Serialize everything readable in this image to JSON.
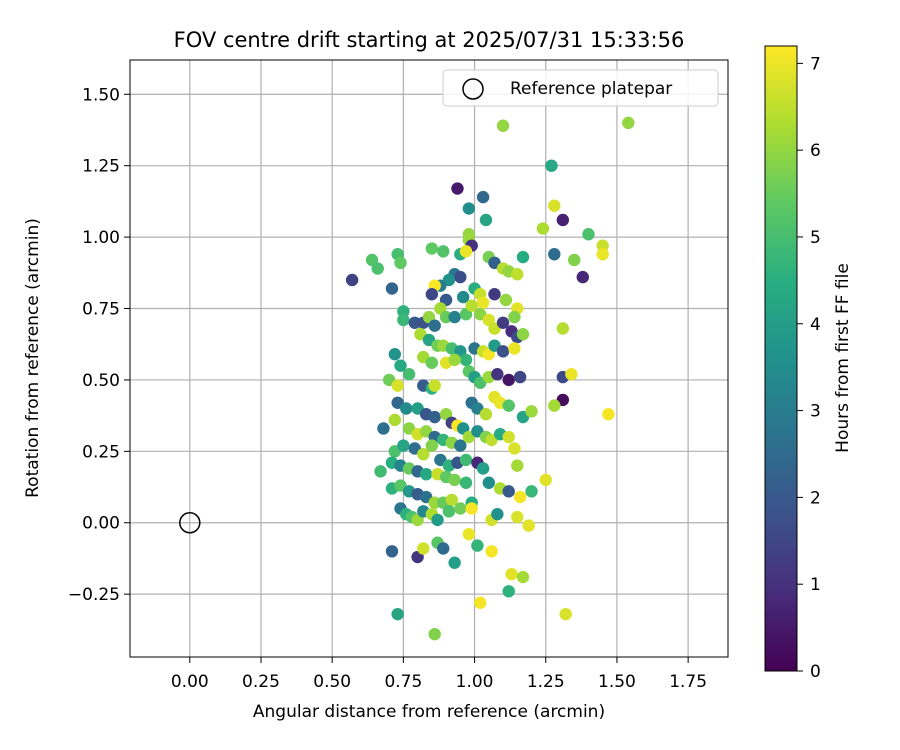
{
  "chart_data": {
    "type": "scatter",
    "title": "FOV centre drift starting at 2025/07/31 15:33:56",
    "xlabel": "Angular distance from reference (arcmin)",
    "ylabel": "Rotation from reference (arcmin)",
    "xlim": [
      -0.21,
      1.89
    ],
    "ylim": [
      -0.47,
      1.62
    ],
    "xticks": [
      "0.00",
      "0.25",
      "0.50",
      "0.75",
      "1.00",
      "1.25",
      "1.50",
      "1.75"
    ],
    "xtick_values": [
      0,
      0.25,
      0.5,
      0.75,
      1.0,
      1.25,
      1.5,
      1.75
    ],
    "yticks": [
      "−0.25",
      "0.00",
      "0.25",
      "0.50",
      "0.75",
      "1.00",
      "1.25",
      "1.50"
    ],
    "ytick_values": [
      -0.25,
      0,
      0.25,
      0.5,
      0.75,
      1.0,
      1.25,
      1.5
    ],
    "grid": true,
    "legend": {
      "location": "top-right",
      "entries": [
        "Reference platepar"
      ]
    },
    "reference_point": {
      "x": 0.0,
      "y": 0.0,
      "label": "Reference platepar"
    },
    "colorbar": {
      "label": "Hours from first FF file",
      "colormap": "viridis",
      "range": [
        0,
        7.2
      ],
      "ticks": [
        "0",
        "1",
        "2",
        "3",
        "4",
        "5",
        "6",
        "7"
      ],
      "tick_values": [
        0,
        1,
        2,
        3,
        4,
        5,
        6,
        7
      ]
    },
    "points": [
      [
        1.1,
        1.39,
        6.0
      ],
      [
        1.54,
        1.4,
        6.0
      ],
      [
        1.27,
        1.25,
        4.3
      ],
      [
        0.94,
        1.17,
        0.5
      ],
      [
        1.03,
        1.14,
        2.4
      ],
      [
        1.28,
        1.11,
        6.8
      ],
      [
        1.31,
        1.06,
        0.7
      ],
      [
        0.98,
        1.1,
        3.5
      ],
      [
        1.04,
        1.06,
        4.2
      ],
      [
        1.24,
        1.03,
        6.3
      ],
      [
        1.4,
        1.01,
        5.1
      ],
      [
        1.45,
        0.97,
        6.6
      ],
      [
        1.45,
        0.94,
        7.0
      ],
      [
        1.28,
        0.94,
        2.5
      ],
      [
        1.35,
        0.92,
        5.8
      ],
      [
        0.57,
        0.85,
        1.4
      ],
      [
        1.38,
        0.86,
        0.8
      ],
      [
        0.64,
        0.92,
        5.2
      ],
      [
        0.66,
        0.89,
        5.1
      ],
      [
        0.73,
        0.94,
        5.0
      ],
      [
        0.74,
        0.91,
        5.4
      ],
      [
        0.71,
        0.82,
        2.3
      ],
      [
        0.85,
        0.96,
        5.4
      ],
      [
        0.89,
        0.95,
        5.2
      ],
      [
        0.95,
        0.94,
        4.5
      ],
      [
        0.98,
        1.01,
        6.0
      ],
      [
        0.98,
        0.99,
        6.1
      ],
      [
        0.99,
        0.97,
        1.0
      ],
      [
        0.97,
        0.95,
        7.0
      ],
      [
        1.05,
        0.93,
        5.7
      ],
      [
        1.07,
        0.91,
        2.2
      ],
      [
        1.1,
        0.89,
        6.4
      ],
      [
        1.12,
        0.88,
        6.0
      ],
      [
        1.17,
        0.93,
        4.4
      ],
      [
        1.15,
        0.87,
        6.5
      ],
      [
        0.93,
        0.87,
        2.8
      ],
      [
        0.95,
        0.86,
        1.7
      ],
      [
        0.91,
        0.85,
        3.6
      ],
      [
        0.88,
        0.83,
        3.0
      ],
      [
        0.86,
        0.83,
        7.2
      ],
      [
        0.85,
        0.8,
        1.5
      ],
      [
        0.9,
        0.78,
        2.0
      ],
      [
        0.96,
        0.79,
        3.4
      ],
      [
        1.0,
        0.82,
        4.5
      ],
      [
        1.02,
        0.8,
        6.6
      ],
      [
        1.03,
        0.77,
        7.0
      ],
      [
        1.07,
        0.8,
        1.2
      ],
      [
        1.11,
        0.78,
        6.0
      ],
      [
        1.15,
        0.75,
        6.9
      ],
      [
        1.14,
        0.72,
        5.8
      ],
      [
        0.75,
        0.74,
        4.6
      ],
      [
        0.75,
        0.71,
        4.8
      ],
      [
        0.79,
        0.7,
        2.0
      ],
      [
        0.82,
        0.7,
        1.8
      ],
      [
        0.84,
        0.72,
        6.0
      ],
      [
        0.86,
        0.69,
        2.6
      ],
      [
        0.88,
        0.75,
        6.2
      ],
      [
        0.9,
        0.72,
        5.5
      ],
      [
        0.93,
        0.72,
        3.1
      ],
      [
        0.97,
        0.73,
        5.3
      ],
      [
        0.99,
        0.76,
        6.4
      ],
      [
        1.02,
        0.73,
        5.9
      ],
      [
        1.05,
        0.71,
        6.8
      ],
      [
        1.07,
        0.68,
        6.6
      ],
      [
        1.1,
        0.7,
        1.3
      ],
      [
        1.13,
        0.67,
        0.9
      ],
      [
        1.15,
        0.65,
        1.6
      ],
      [
        1.17,
        0.66,
        5.9
      ],
      [
        1.31,
        0.68,
        6.4
      ],
      [
        0.81,
        0.66,
        6.3
      ],
      [
        0.84,
        0.64,
        4.2
      ],
      [
        0.87,
        0.62,
        5.6
      ],
      [
        0.89,
        0.62,
        6.1
      ],
      [
        0.92,
        0.61,
        5.0
      ],
      [
        0.95,
        0.6,
        3.8
      ],
      [
        0.97,
        0.57,
        4.7
      ],
      [
        1.0,
        0.61,
        2.8
      ],
      [
        1.03,
        0.6,
        6.6
      ],
      [
        1.05,
        0.59,
        7.1
      ],
      [
        1.07,
        0.62,
        3.9
      ],
      [
        1.1,
        0.6,
        1.8
      ],
      [
        1.14,
        0.61,
        7.0
      ],
      [
        0.72,
        0.59,
        3.7
      ],
      [
        0.82,
        0.58,
        6.2
      ],
      [
        0.85,
        0.56,
        5.5
      ],
      [
        0.9,
        0.56,
        6.9
      ],
      [
        0.93,
        0.57,
        6.1
      ],
      [
        0.74,
        0.55,
        4.3
      ],
      [
        0.77,
        0.52,
        5.0
      ],
      [
        0.7,
        0.5,
        5.6
      ],
      [
        0.73,
        0.48,
        6.8
      ],
      [
        0.82,
        0.48,
        2.1
      ],
      [
        0.85,
        0.47,
        4.6
      ],
      [
        0.86,
        0.48,
        6.6
      ],
      [
        0.98,
        0.53,
        5.3
      ],
      [
        1.0,
        0.51,
        4.0
      ],
      [
        1.02,
        0.49,
        5.1
      ],
      [
        1.05,
        0.51,
        6.1
      ],
      [
        1.08,
        0.52,
        1.1
      ],
      [
        1.12,
        0.5,
        0.4
      ],
      [
        1.16,
        0.51,
        1.5
      ],
      [
        1.31,
        0.51,
        1.6
      ],
      [
        1.34,
        0.52,
        7.0
      ],
      [
        1.31,
        0.43,
        0.2
      ],
      [
        1.28,
        0.41,
        6.2
      ],
      [
        1.47,
        0.38,
        7.1
      ],
      [
        0.73,
        0.42,
        2.4
      ],
      [
        0.76,
        0.4,
        3.4
      ],
      [
        0.8,
        0.4,
        4.0
      ],
      [
        0.83,
        0.38,
        1.9
      ],
      [
        0.86,
        0.37,
        2.2
      ],
      [
        0.9,
        0.38,
        6.0
      ],
      [
        0.92,
        0.35,
        1.4
      ],
      [
        0.94,
        0.34,
        7.2
      ],
      [
        0.96,
        0.33,
        3.6
      ],
      [
        0.99,
        0.42,
        2.7
      ],
      [
        1.01,
        0.4,
        3.1
      ],
      [
        1.04,
        0.38,
        6.4
      ],
      [
        1.07,
        0.44,
        6.9
      ],
      [
        1.09,
        0.42,
        7.0
      ],
      [
        1.12,
        0.41,
        5.2
      ],
      [
        1.17,
        0.37,
        4.2
      ],
      [
        1.2,
        0.39,
        6.1
      ],
      [
        0.68,
        0.33,
        2.6
      ],
      [
        0.72,
        0.36,
        6.3
      ],
      [
        0.77,
        0.33,
        5.9
      ],
      [
        0.8,
        0.31,
        6.7
      ],
      [
        0.83,
        0.32,
        6.0
      ],
      [
        0.86,
        0.3,
        2.5
      ],
      [
        0.89,
        0.29,
        4.7
      ],
      [
        0.92,
        0.28,
        5.9
      ],
      [
        0.95,
        0.27,
        2.8
      ],
      [
        0.98,
        0.3,
        6.2
      ],
      [
        1.01,
        0.32,
        3.5
      ],
      [
        1.04,
        0.3,
        5.8
      ],
      [
        1.06,
        0.29,
        6.5
      ],
      [
        1.09,
        0.31,
        4.4
      ],
      [
        1.12,
        0.3,
        6.7
      ],
      [
        1.14,
        0.26,
        6.8
      ],
      [
        0.72,
        0.25,
        5.1
      ],
      [
        0.75,
        0.27,
        4.2
      ],
      [
        0.79,
        0.26,
        2.6
      ],
      [
        0.82,
        0.24,
        6.4
      ],
      [
        0.85,
        0.27,
        5.8
      ],
      [
        0.88,
        0.22,
        2.8
      ],
      [
        0.91,
        0.2,
        4.6
      ],
      [
        0.94,
        0.21,
        1.9
      ],
      [
        0.97,
        0.22,
        4.9
      ],
      [
        1.01,
        0.21,
        0.8
      ],
      [
        1.03,
        0.19,
        4.0
      ],
      [
        1.15,
        0.2,
        6.2
      ],
      [
        0.67,
        0.18,
        4.9
      ],
      [
        0.71,
        0.21,
        4.5
      ],
      [
        0.74,
        0.2,
        3.2
      ],
      [
        0.77,
        0.19,
        5.5
      ],
      [
        0.8,
        0.18,
        2.4
      ],
      [
        0.83,
        0.17,
        4.3
      ],
      [
        0.87,
        0.17,
        6.6
      ],
      [
        0.9,
        0.16,
        5.4
      ],
      [
        0.93,
        0.15,
        5.7
      ],
      [
        0.97,
        0.14,
        4.8
      ],
      [
        1.05,
        0.14,
        3.5
      ],
      [
        0.71,
        0.12,
        4.6
      ],
      [
        0.74,
        0.13,
        5.3
      ],
      [
        0.77,
        0.11,
        3.8
      ],
      [
        0.8,
        0.1,
        2.1
      ],
      [
        0.83,
        0.09,
        2.7
      ],
      [
        0.86,
        0.07,
        6.1
      ],
      [
        0.89,
        0.07,
        5.5
      ],
      [
        0.92,
        0.08,
        6.4
      ],
      [
        0.99,
        0.07,
        4.4
      ],
      [
        1.09,
        0.12,
        6.3
      ],
      [
        1.12,
        0.11,
        2.0
      ],
      [
        1.16,
        0.09,
        7.1
      ],
      [
        1.2,
        0.11,
        4.8
      ],
      [
        1.25,
        0.15,
        6.9
      ],
      [
        0.74,
        0.05,
        2.8
      ],
      [
        0.76,
        0.03,
        4.6
      ],
      [
        0.78,
        0.02,
        5.2
      ],
      [
        0.8,
        0.01,
        6.1
      ],
      [
        0.82,
        0.04,
        3.3
      ],
      [
        0.85,
        0.03,
        6.3
      ],
      [
        0.87,
        0.01,
        3.9
      ],
      [
        0.91,
        0.04,
        5.1
      ],
      [
        0.95,
        0.05,
        5.6
      ],
      [
        0.99,
        0.05,
        7.1
      ],
      [
        1.06,
        0.01,
        6.7
      ],
      [
        1.08,
        0.03,
        3.6
      ],
      [
        1.15,
        0.02,
        6.8
      ],
      [
        1.19,
        -0.01,
        6.9
      ],
      [
        0.71,
        -0.1,
        2.3
      ],
      [
        0.8,
        -0.12,
        1.1
      ],
      [
        0.82,
        -0.09,
        6.7
      ],
      [
        0.87,
        -0.07,
        5.3
      ],
      [
        0.89,
        -0.09,
        2.5
      ],
      [
        0.93,
        -0.14,
        4.0
      ],
      [
        0.98,
        -0.04,
        7.0
      ],
      [
        1.01,
        -0.08,
        4.7
      ],
      [
        1.06,
        -0.1,
        7.1
      ],
      [
        1.13,
        -0.18,
        6.9
      ],
      [
        1.17,
        -0.19,
        6.2
      ],
      [
        0.73,
        -0.32,
        4.2
      ],
      [
        1.02,
        -0.28,
        7.1
      ],
      [
        1.12,
        -0.24,
        4.6
      ],
      [
        1.32,
        -0.32,
        6.8
      ],
      [
        0.86,
        -0.39,
        5.8
      ]
    ]
  }
}
